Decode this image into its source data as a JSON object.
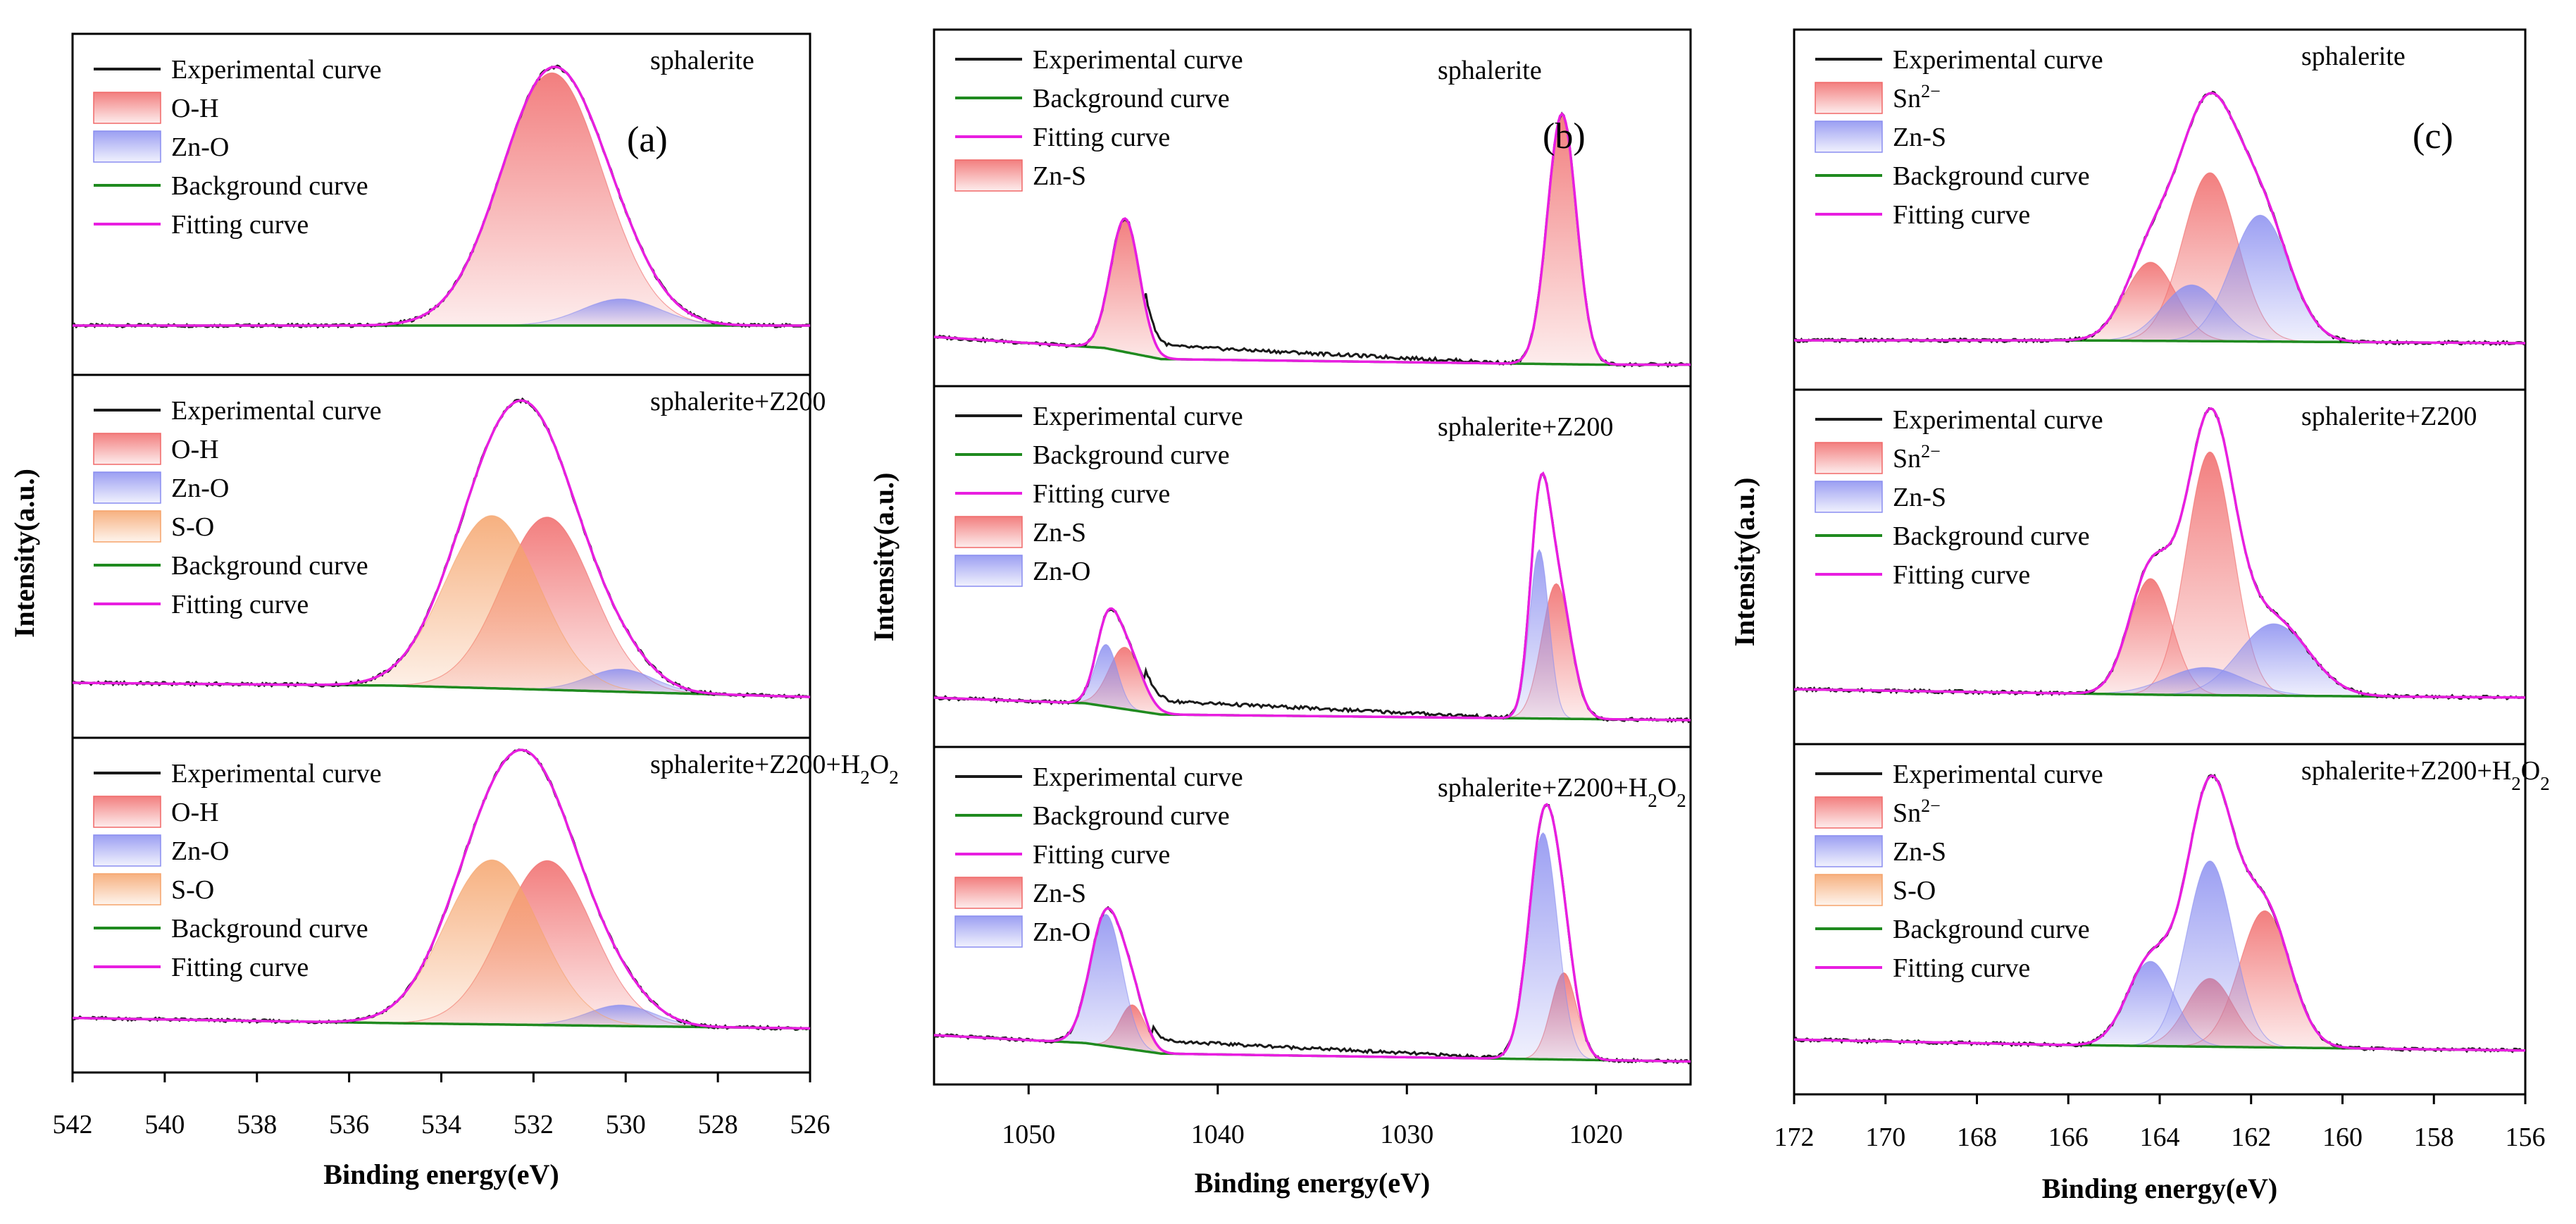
{
  "figure": {
    "panels": [
      {
        "panel_label": "(a)",
        "xlabel": "Binding energy(eV)",
        "ylabel": "Intensity(a.u.)",
        "xlim": [
          542,
          526
        ],
        "xticks": [
          "542",
          "540",
          "538",
          "536",
          "534",
          "532",
          "530",
          "528",
          "526"
        ]
      },
      {
        "panel_label": "(b)",
        "xlabel": "Binding energy(eV)",
        "ylabel": "Intensity(a.u.)",
        "xlim": [
          1055,
          1015
        ],
        "xticks": [
          "1050",
          "1040",
          "1030",
          "1020"
        ]
      },
      {
        "panel_label": "(c)",
        "xlabel": "Binding energy(eV)",
        "ylabel": "Intensity(a.u.)",
        "xlim": [
          172,
          156
        ],
        "xticks": [
          "172",
          "170",
          "168",
          "166",
          "164",
          "162",
          "160",
          "158",
          "156"
        ]
      }
    ]
  },
  "colors": {
    "experimental": "#1a1a1a",
    "background": "#1f8a1f",
    "fitting": "#e81ee0",
    "red_peak": "#f06868",
    "blue_peak": "#8a8ef0",
    "orange_peak": "#f5a36a"
  },
  "chart_data": [
    {
      "type": "line",
      "panel": "(a)",
      "sample": "sphalerite",
      "xlim": [
        542,
        526
      ],
      "legend": [
        "Experimental curve",
        "O-H",
        "Zn-O",
        "Background curve",
        "Fitting curve"
      ],
      "peaks": [
        {
          "label": "O-H",
          "center": 531.6,
          "height": 0.95,
          "fwhm": 2.6,
          "color": "red"
        },
        {
          "label": "Zn-O",
          "center": 530.1,
          "height": 0.1,
          "fwhm": 2.0,
          "color": "blue"
        }
      ],
      "background": [
        [
          542,
          0.0
        ],
        [
          526,
          0.0
        ]
      ]
    },
    {
      "type": "line",
      "panel": "(a)",
      "sample": "sphalerite+Z200",
      "xlim": [
        542,
        526
      ],
      "legend": [
        "Experimental curve",
        "O-H",
        "Zn-O",
        "S-O",
        "Background curve",
        "Fitting curve"
      ],
      "peaks": [
        {
          "label": "O-H",
          "center": 531.7,
          "height": 0.61,
          "fwhm": 2.3,
          "color": "red"
        },
        {
          "label": "Zn-O",
          "center": 530.1,
          "height": 0.08,
          "fwhm": 1.7,
          "color": "blue"
        },
        {
          "label": "S-O",
          "center": 532.9,
          "height": 0.61,
          "fwhm": 2.4,
          "color": "orange"
        }
      ],
      "background": [
        [
          542,
          0.02
        ],
        [
          535,
          0.01
        ],
        [
          526,
          -0.03
        ]
      ]
    },
    {
      "type": "line",
      "panel": "(a)",
      "sample": "sphalerite+Z200+H2O2",
      "xlim": [
        542,
        526
      ],
      "legend": [
        "Experimental curve",
        "O-H",
        "Zn-O",
        "S-O",
        "Background curve",
        "Fitting curve"
      ],
      "peaks": [
        {
          "label": "O-H",
          "center": 531.7,
          "height": 0.63,
          "fwhm": 2.3,
          "color": "red"
        },
        {
          "label": "Zn-O",
          "center": 530.1,
          "height": 0.08,
          "fwhm": 1.7,
          "color": "blue"
        },
        {
          "label": "S-O",
          "center": 532.9,
          "height": 0.63,
          "fwhm": 2.4,
          "color": "orange"
        }
      ],
      "background": [
        [
          542,
          0.02
        ],
        [
          535,
          0.0
        ],
        [
          526,
          -0.02
        ]
      ]
    },
    {
      "type": "line",
      "panel": "(b)",
      "sample": "sphalerite",
      "xlim": [
        1055,
        1015
      ],
      "legend": [
        "Experimental curve",
        "Background curve",
        "Fitting curve",
        "Zn-S"
      ],
      "peaks": [
        {
          "label": "Zn-S",
          "center": 1044.9,
          "height": 0.48,
          "fwhm": 1.8,
          "color": "red"
        },
        {
          "label": "Zn-S",
          "center": 1021.8,
          "height": 0.9,
          "fwhm": 1.8,
          "color": "red"
        }
      ],
      "background": [
        [
          1055,
          0.0
        ],
        [
          1046,
          -0.04
        ],
        [
          1043,
          -0.08
        ],
        [
          1020,
          -0.1
        ],
        [
          1015,
          -0.1
        ]
      ]
    },
    {
      "type": "line",
      "panel": "(b)",
      "sample": "sphalerite+Z200",
      "xlim": [
        1055,
        1015
      ],
      "legend": [
        "Experimental curve",
        "Background curve",
        "Fitting curve",
        "Zn-S",
        "Zn-O"
      ],
      "peaks": [
        {
          "label": "Zn-S",
          "center": 1044.9,
          "height": 0.22,
          "fwhm": 2.0,
          "color": "red"
        },
        {
          "label": "Zn-O",
          "center": 1045.9,
          "height": 0.22,
          "fwhm": 1.4,
          "color": "blue"
        },
        {
          "label": "Zn-S",
          "center": 1022.1,
          "height": 0.48,
          "fwhm": 1.8,
          "color": "red"
        },
        {
          "label": "Zn-O",
          "center": 1023.0,
          "height": 0.6,
          "fwhm": 1.2,
          "color": "blue"
        }
      ],
      "background": [
        [
          1055,
          0.0
        ],
        [
          1047,
          -0.02
        ],
        [
          1043,
          -0.06
        ],
        [
          1015,
          -0.08
        ]
      ]
    },
    {
      "type": "line",
      "panel": "(b)",
      "sample": "sphalerite+Z200+H2O2",
      "xlim": [
        1055,
        1015
      ],
      "legend": [
        "Experimental curve",
        "Background curve",
        "Fitting curve",
        "Zn-S",
        "Zn-O"
      ],
      "peaks": [
        {
          "label": "Zn-S",
          "center": 1044.5,
          "height": 0.17,
          "fwhm": 1.6,
          "color": "red"
        },
        {
          "label": "Zn-O",
          "center": 1045.9,
          "height": 0.5,
          "fwhm": 2.0,
          "color": "blue"
        },
        {
          "label": "Zn-S",
          "center": 1021.7,
          "height": 0.33,
          "fwhm": 1.6,
          "color": "red"
        },
        {
          "label": "Zn-O",
          "center": 1022.8,
          "height": 0.86,
          "fwhm": 1.8,
          "color": "blue"
        }
      ],
      "background": [
        [
          1055,
          0.0
        ],
        [
          1047,
          -0.03
        ],
        [
          1043,
          -0.07
        ],
        [
          1015,
          -0.1
        ]
      ]
    },
    {
      "type": "line",
      "panel": "(c)",
      "sample": "sphalerite",
      "xlim": [
        172,
        156
      ],
      "legend": [
        "Experimental curve",
        "Sn2−",
        "Zn-S",
        "Background curve",
        "Fitting curve"
      ],
      "peaks": [
        {
          "label": "Sn2−",
          "center": 162.9,
          "height": 0.6,
          "fwhm": 1.4,
          "color": "red"
        },
        {
          "label": "Sn2−",
          "center": 164.2,
          "height": 0.28,
          "fwhm": 1.3,
          "color": "red"
        },
        {
          "label": "Zn-S",
          "center": 161.8,
          "height": 0.45,
          "fwhm": 1.5,
          "color": "blue"
        },
        {
          "label": "Zn-S",
          "center": 163.3,
          "height": 0.2,
          "fwhm": 1.5,
          "color": "blue"
        }
      ],
      "background": [
        [
          172,
          0.0
        ],
        [
          166,
          0.0
        ],
        [
          156,
          -0.01
        ]
      ]
    },
    {
      "type": "line",
      "panel": "(c)",
      "sample": "sphalerite+Z200",
      "xlim": [
        172,
        156
      ],
      "legend": [
        "Experimental curve",
        "Sn2−",
        "Zn-S",
        "Background curve",
        "Fitting curve"
      ],
      "peaks": [
        {
          "label": "Sn2−",
          "center": 162.9,
          "height": 0.88,
          "fwhm": 1.2,
          "color": "red"
        },
        {
          "label": "Sn2−",
          "center": 164.2,
          "height": 0.42,
          "fwhm": 1.1,
          "color": "red"
        },
        {
          "label": "Zn-S",
          "center": 161.5,
          "height": 0.26,
          "fwhm": 1.8,
          "color": "blue"
        },
        {
          "label": "Zn-S",
          "center": 163.0,
          "height": 0.1,
          "fwhm": 2.0,
          "color": "blue"
        }
      ],
      "background": [
        [
          172,
          0.02
        ],
        [
          164,
          0.0
        ],
        [
          156,
          -0.01
        ]
      ]
    },
    {
      "type": "line",
      "panel": "(c)",
      "sample": "sphalerite+Z200+H2O2",
      "xlim": [
        172,
        156
      ],
      "legend": [
        "Experimental curve",
        "Sn2−",
        "Zn-S",
        "S-O",
        "Background curve",
        "Fitting curve"
      ],
      "peaks": [
        {
          "label": "Sn2−",
          "center": 161.7,
          "height": 0.5,
          "fwhm": 1.3,
          "color": "red"
        },
        {
          "label": "Sn2−",
          "center": 162.9,
          "height": 0.25,
          "fwhm": 1.2,
          "color": "red"
        },
        {
          "label": "Zn-S",
          "center": 162.9,
          "height": 0.68,
          "fwhm": 1.2,
          "color": "blue"
        },
        {
          "label": "Zn-S",
          "center": 164.2,
          "height": 0.31,
          "fwhm": 1.2,
          "color": "blue"
        },
        {
          "label": "S-O",
          "center": 166.0,
          "height": 0.0,
          "fwhm": 1.0,
          "color": "orange"
        }
      ],
      "background": [
        [
          172,
          0.02
        ],
        [
          166,
          0.0
        ],
        [
          156,
          -0.02
        ]
      ]
    }
  ]
}
